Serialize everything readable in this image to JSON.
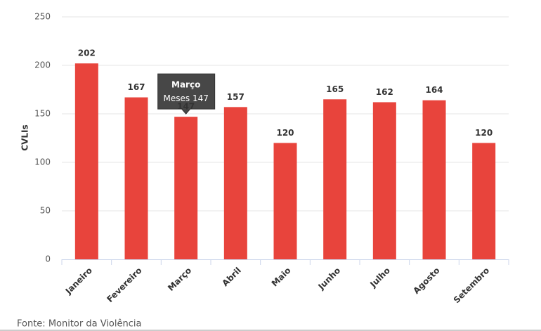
{
  "chart_data": {
    "type": "bar",
    "y_label": "CVLIs",
    "categories": [
      "Janeiro",
      "Fevereiro",
      "Março",
      "Abril",
      "Maio",
      "Junho",
      "Julho",
      "Agosto",
      "Setembro"
    ],
    "series": [
      {
        "name": "Meses",
        "color": "#e8443c",
        "values": [
          202,
          167,
          147,
          157,
          120,
          165,
          162,
          164,
          120
        ]
      }
    ],
    "ylim": [
      0,
      250
    ],
    "yticks": [
      0,
      50,
      100,
      150,
      200,
      250
    ],
    "grid": true,
    "source": "Fonte: Monitor da Violência"
  }
}
